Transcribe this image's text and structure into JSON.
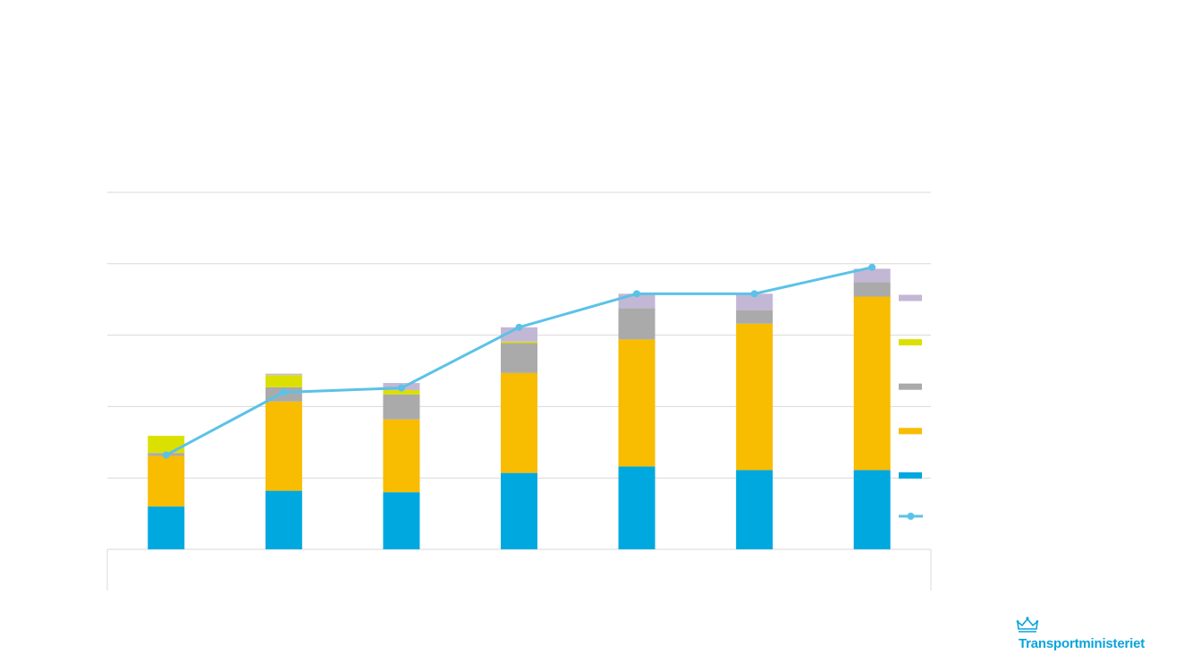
{
  "chart_data": {
    "type": "bar",
    "stacked": true,
    "categories": [
      "",
      "",
      "",
      "",
      "",
      "",
      ""
    ],
    "series": [
      {
        "values": [
          60,
          82,
          80,
          107,
          116,
          111,
          111
        ],
        "color": "#00a8e0"
      },
      {
        "values": [
          71,
          125,
          102,
          140,
          178,
          205,
          243
        ],
        "color": "#f8bc00"
      },
      {
        "values": [
          4,
          20,
          35,
          42,
          44,
          19,
          20
        ],
        "color": "#aaaaaa"
      },
      {
        "values": [
          24,
          17,
          6,
          2,
          0,
          0,
          0
        ],
        "color": "#dce000"
      },
      {
        "values": [
          0,
          2,
          10,
          20,
          20,
          23,
          19
        ],
        "color": "#c3b7d6"
      }
    ],
    "line": {
      "values": [
        132,
        220,
        226,
        311,
        358,
        358,
        395
      ],
      "color": "#5bc2e7"
    },
    "ylim": [
      0,
      500
    ],
    "gridlines": [
      0,
      100,
      200,
      300,
      400,
      500
    ],
    "grid": true,
    "legend": "right",
    "title": "",
    "xlabel": "",
    "ylabel": ""
  },
  "brand": {
    "name": "Transportministeriet",
    "color": "#0aa3dc",
    "icon": "crown-icon"
  }
}
